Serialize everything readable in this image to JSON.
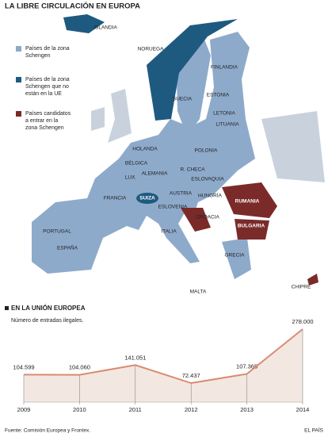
{
  "title": "LA LIBRE CIRCULACIÓN EN EUROPA",
  "map": {
    "legend": [
      {
        "lines": [
          "Países de la zona",
          "Schengen"
        ],
        "color": "#8eaacb"
      },
      {
        "lines": [
          "Países de la zona",
          "Schengen que no",
          "están en la UE"
        ],
        "color": "#1e5a80"
      },
      {
        "lines": [
          "Países candidatos",
          "a entrar en la",
          "zona Schengen"
        ],
        "color": "#7b2a2a"
      }
    ],
    "labels": [
      "ISLANDIA",
      "NORUEGA",
      "FINLANDIA",
      "SUECIA",
      "ESTONIA",
      "LETONIA",
      "LITUANIA",
      "HOLANDA",
      "POLONIA",
      "BÉLGICA",
      "ALEMANIA",
      "R. CHECA",
      "LUX.",
      "ESLOVAQUIA",
      "FRANCIA",
      "SUIZA",
      "AUSTRIA",
      "HUNGRÍA",
      "RUMANIA",
      "ESLOVENIA",
      "CROACIA",
      "BULGARIA",
      "PORTUGAL",
      "ESPAÑA",
      "ITALIA",
      "GRECIA",
      "MALTA",
      "CHIPRE"
    ]
  },
  "chart_data": {
    "type": "area",
    "title": "EN LA UNIÓN EUROPEA",
    "subtitle": "Número de entradas ilegales.",
    "categories": [
      "2009",
      "2010",
      "2011",
      "2012",
      "2013",
      "2014"
    ],
    "values": [
      104599,
      104060,
      141051,
      72437,
      107365,
      278000
    ],
    "value_labels": [
      "104.599",
      "104.060",
      "141.051",
      "72.437",
      "107.365",
      "278.000"
    ],
    "color": "#d98a70",
    "fill": "#f3e7e1"
  },
  "source": "Fuente: Comisión Europea y Frontex.",
  "brand": "EL PAÍS"
}
